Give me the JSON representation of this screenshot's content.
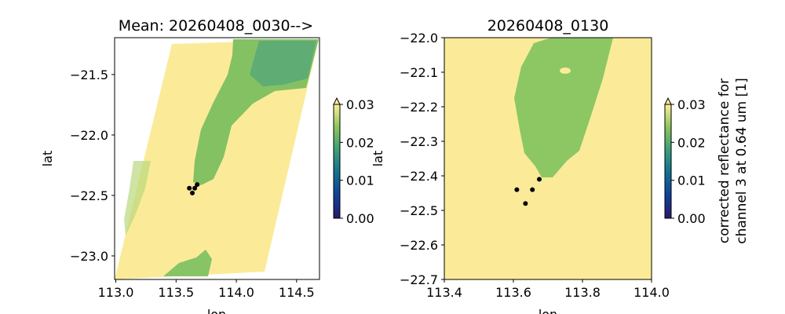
{
  "chart_data": [
    {
      "type": "heatmap",
      "title": "Mean: 20260408_0030-->",
      "xlabel": "lon",
      "ylabel": "lat",
      "xlim": [
        112.99,
        114.69
      ],
      "ylim": [
        -23.195,
        -21.195
      ],
      "xticks": [
        113.0,
        113.5,
        114.0,
        114.5
      ],
      "xtick_labels": [
        "113.0",
        "113.5",
        "114.0",
        "114.5"
      ],
      "yticks": [
        -21.5,
        -22.0,
        -22.5,
        -23.0
      ],
      "ytick_labels": [
        "−21.5",
        "−22.0",
        "−22.5",
        "−23.0"
      ],
      "colorbar": {
        "vmin": 0.0,
        "vmax": 0.03,
        "extend": "max",
        "ticks": [
          0.0,
          0.01,
          0.02,
          0.03
        ],
        "tick_labels": [
          "0.00",
          "0.01",
          "0.02",
          "0.03"
        ],
        "label": ""
      },
      "points": [
        [
          113.61,
          -22.44
        ],
        [
          113.655,
          -22.44
        ],
        [
          113.635,
          -22.48
        ],
        [
          113.675,
          -22.41
        ]
      ]
    },
    {
      "type": "heatmap",
      "title": "20260408_0130",
      "xlabel": "lon",
      "ylabel": "lat",
      "xlim": [
        113.4,
        114.0
      ],
      "ylim": [
        -22.7,
        -22.0
      ],
      "xticks": [
        113.4,
        113.6,
        113.8,
        114.0
      ],
      "xtick_labels": [
        "113.4",
        "113.6",
        "113.8",
        "114.0"
      ],
      "yticks": [
        -22.0,
        -22.1,
        -22.2,
        -22.3,
        -22.4,
        -22.5,
        -22.6,
        -22.7
      ],
      "ytick_labels": [
        "−22.0",
        "−22.1",
        "−22.2",
        "−22.3",
        "−22.4",
        "−22.5",
        "−22.6",
        "−22.7"
      ],
      "colorbar": {
        "vmin": 0.0,
        "vmax": 0.03,
        "extend": "max",
        "ticks": [
          0.0,
          0.01,
          0.02,
          0.03
        ],
        "tick_labels": [
          "0.00",
          "0.01",
          "0.02",
          "0.03"
        ],
        "label_lines": [
          "corrected reflectance for",
          "channel 3 at 0.64 um [1]"
        ]
      },
      "points": [
        [
          113.61,
          -22.44
        ],
        [
          113.655,
          -22.44
        ],
        [
          113.635,
          -22.48
        ],
        [
          113.675,
          -22.41
        ]
      ]
    }
  ],
  "colors": {
    "high": "#fbeb98",
    "mid": "#8cc660",
    "low_mid": "#4fa579",
    "dark": "#2a186c",
    "point": "#000000"
  }
}
